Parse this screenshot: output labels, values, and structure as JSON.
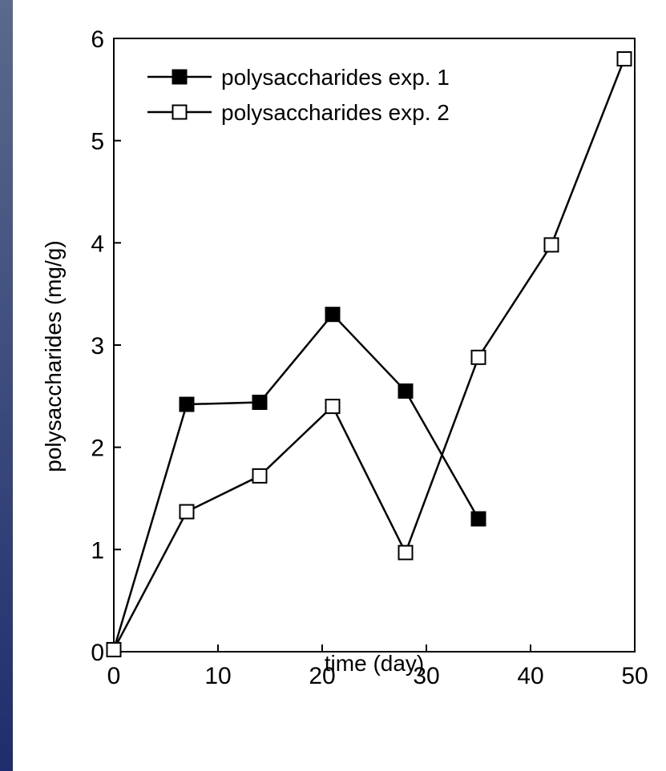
{
  "chart_data": {
    "type": "line",
    "xlabel": "time (day)",
    "ylabel": "polysaccharides (mg/g)",
    "xlim": [
      0,
      50
    ],
    "ylim": [
      0,
      6
    ],
    "xticks": [
      0,
      10,
      20,
      30,
      40,
      50
    ],
    "yticks": [
      0,
      1,
      2,
      3,
      4,
      5,
      6
    ],
    "grid": false,
    "legend": {
      "placement": "top-left",
      "entries": [
        "polysaccharides exp. 1",
        "polysaccharides exp. 2"
      ]
    },
    "series": [
      {
        "name": "polysaccharides exp. 1",
        "marker": "filled-square",
        "color": "#000000",
        "x": [
          0,
          7,
          14,
          21,
          28,
          35
        ],
        "y": [
          0.02,
          2.42,
          2.44,
          3.3,
          2.55,
          1.3
        ]
      },
      {
        "name": "polysaccharides exp. 2",
        "marker": "open-square",
        "color": "#000000",
        "x": [
          0,
          7,
          14,
          21,
          28,
          35,
          42,
          49
        ],
        "y": [
          0.02,
          1.37,
          1.72,
          2.4,
          0.97,
          2.88,
          3.98,
          5.8
        ]
      }
    ]
  },
  "colors": {
    "background": "#ffffff",
    "ink": "#000000",
    "left_strip_top": "#5a6a8c",
    "left_strip_bottom": "#1f2d6e"
  }
}
